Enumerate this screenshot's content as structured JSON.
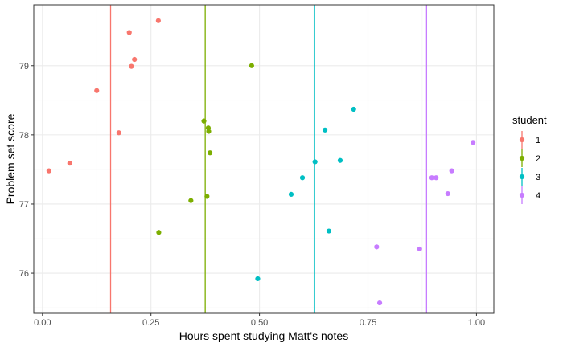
{
  "chart_data": {
    "type": "scatter",
    "title": "",
    "xlabel": "Hours spent studying Matt's notes",
    "ylabel": "Problem set score",
    "xlim": [
      -0.02,
      1.04
    ],
    "ylim": [
      75.42,
      79.88
    ],
    "x_ticks": [
      0.0,
      0.25,
      0.5,
      0.75,
      1.0
    ],
    "x_tick_labels": [
      "0.00",
      "0.25",
      "0.50",
      "0.75",
      "1.00"
    ],
    "y_ticks": [
      76,
      77,
      78,
      79
    ],
    "y_tick_labels": [
      "76",
      "77",
      "78",
      "79"
    ],
    "grid": true,
    "legend": {
      "title": "student",
      "position": "right"
    },
    "series": [
      {
        "name": "1",
        "color": "#F8766D",
        "vline": 0.157,
        "x": [
          0.015,
          0.063,
          0.125,
          0.176,
          0.2,
          0.205,
          0.212,
          0.267
        ],
        "y": [
          77.48,
          77.59,
          78.64,
          78.03,
          79.48,
          78.99,
          79.09,
          79.65
        ]
      },
      {
        "name": "2",
        "color": "#7CAE00",
        "vline": 0.375,
        "x": [
          0.268,
          0.342,
          0.372,
          0.379,
          0.382,
          0.383,
          0.386,
          0.482
        ],
        "y": [
          76.59,
          77.05,
          78.2,
          77.11,
          78.1,
          78.05,
          77.74,
          79.0
        ]
      },
      {
        "name": "3",
        "color": "#00BFC4",
        "vline": 0.627,
        "x": [
          0.496,
          0.573,
          0.599,
          0.628,
          0.651,
          0.66,
          0.686,
          0.717
        ],
        "y": [
          75.92,
          77.14,
          77.38,
          77.61,
          78.07,
          76.61,
          77.63,
          78.37
        ]
      },
      {
        "name": "4",
        "color": "#C77CFF",
        "vline": 0.885,
        "x": [
          0.77,
          0.777,
          0.869,
          0.897,
          0.907,
          0.934,
          0.943,
          0.992
        ],
        "y": [
          76.38,
          75.57,
          76.35,
          77.38,
          77.38,
          77.15,
          77.48,
          77.89
        ]
      }
    ]
  }
}
